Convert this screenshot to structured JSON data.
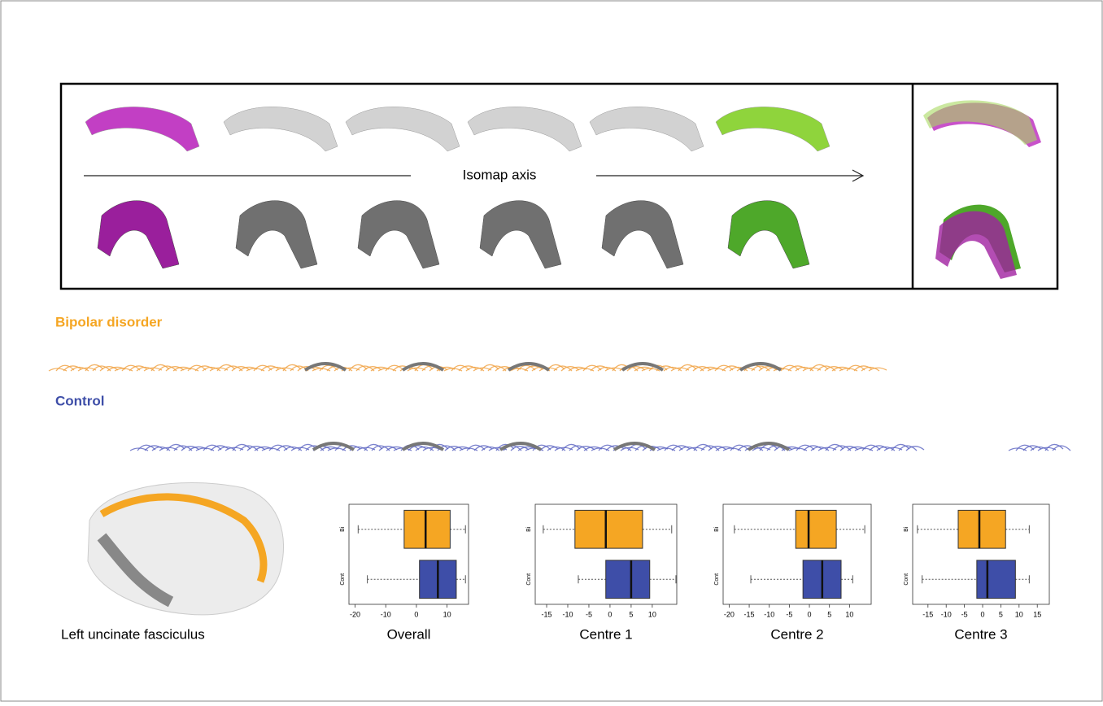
{
  "labels": {
    "isomap_axis": "Isomap axis",
    "bipolar": "Bipolar disorder",
    "control": "Control",
    "tract": "Left uncinate fasciculus"
  },
  "chart_data": [
    {
      "type": "box",
      "title": "Overall",
      "categories": [
        "Bi",
        "Cont"
      ],
      "colors": [
        "#f5a623",
        "#3e4ea8"
      ],
      "boxes": [
        {
          "min": -19,
          "q1": -4,
          "median": 3,
          "q3": 11,
          "max": 16
        },
        {
          "min": -16,
          "q1": 1,
          "median": 7,
          "q3": 13,
          "max": 16
        }
      ],
      "xlim": [
        -22,
        17
      ],
      "xticks": [
        -20,
        -10,
        0,
        10
      ]
    },
    {
      "type": "box",
      "title": "Centre 1",
      "categories": [
        "Bi",
        "Cont"
      ],
      "colors": [
        "#f5a623",
        "#3e4ea8"
      ],
      "boxes": [
        {
          "min": -15.8,
          "q1": -8.3,
          "median": -1,
          "q3": 7.7,
          "max": 14.6
        },
        {
          "min": -7.5,
          "q1": -1,
          "median": 5,
          "q3": 9.4,
          "max": 15.6
        }
      ],
      "xlim": [
        -17.7,
        15.8
      ],
      "xticks": [
        -15,
        -10,
        -5,
        0,
        5,
        10
      ]
    },
    {
      "type": "box",
      "title": "Centre 2",
      "categories": [
        "Bi",
        "Cont"
      ],
      "colors": [
        "#f5a623",
        "#3e4ea8"
      ],
      "boxes": [
        {
          "min": -18.7,
          "q1": -3.4,
          "median": -0.2,
          "q3": 6.7,
          "max": 13.8
        },
        {
          "min": -14.6,
          "q1": -1.6,
          "median": 3.2,
          "q3": 7.9,
          "max": 10.8
        }
      ],
      "xlim": [
        -21.5,
        15.4
      ],
      "xticks": [
        -20,
        -15,
        -10,
        -5,
        0,
        5,
        10
      ]
    },
    {
      "type": "box",
      "title": "Centre 3",
      "categories": [
        "Bi",
        "Cont"
      ],
      "colors": [
        "#f5a623",
        "#3e4ea8"
      ],
      "boxes": [
        {
          "min": -17.9,
          "q1": -6.7,
          "median": -0.9,
          "q3": 6.3,
          "max": 12.8
        },
        {
          "min": -16.6,
          "q1": -1.6,
          "median": 1.3,
          "q3": 9,
          "max": 12.8
        }
      ],
      "xlim": [
        -19.2,
        18.3
      ],
      "xticks": [
        -15,
        -10,
        -5,
        0,
        5,
        10,
        15
      ]
    }
  ]
}
